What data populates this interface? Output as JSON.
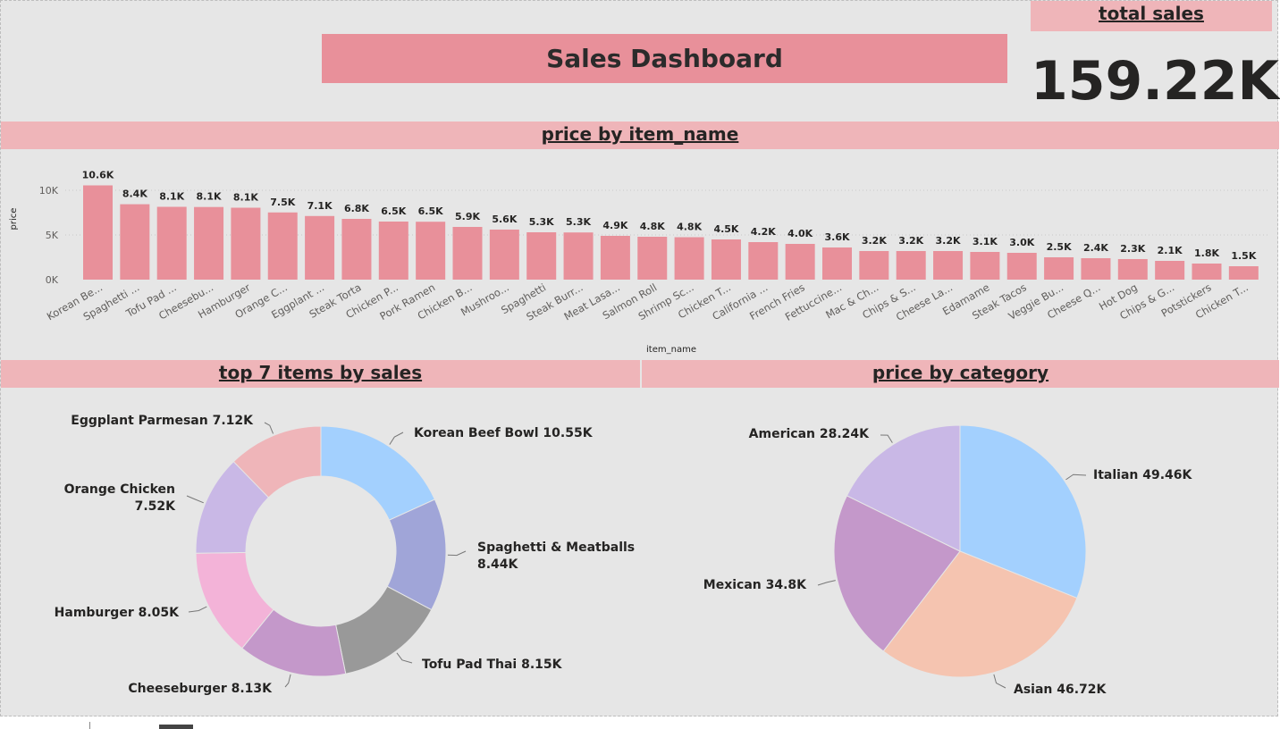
{
  "dashboard": {
    "title": "Sales Dashboard",
    "total_label": "total sales",
    "total_value": "159.22K"
  },
  "charts_titles": {
    "bar": "price by item_name",
    "donut": "top 7 items by sales",
    "pie": "price by category"
  },
  "colors": {
    "bar": "#e8909a",
    "header": "#efb5b9",
    "title_bg": "#e8909a",
    "background": "#e6e6e6"
  },
  "chart_data": [
    {
      "type": "bar",
      "title": "price by item_name",
      "xlabel": "item_name",
      "ylabel": "price",
      "ylim": [
        0,
        11000
      ],
      "yticks": [
        {
          "v": 0,
          "label": "0K"
        },
        {
          "v": 5000,
          "label": "5K"
        },
        {
          "v": 10000,
          "label": "10K"
        }
      ],
      "grid": true,
      "categories": [
        "Korean Be...",
        "Spaghetti ...",
        "Tofu Pad ...",
        "Cheesebu...",
        "Hamburger",
        "Orange C...",
        "Eggplant ...",
        "Steak Torta",
        "Chicken P...",
        "Pork Ramen",
        "Chicken B...",
        "Mushroo...",
        "Spaghetti",
        "Steak Burr...",
        "Meat Lasa...",
        "Salmon Roll",
        "Shrimp Sc...",
        "Chicken T...",
        "California ...",
        "French Fries",
        "Fettuccine...",
        "Mac & Ch...",
        "Chips & S...",
        "Cheese La...",
        "Edamame",
        "Steak Tacos",
        "Veggie Bu...",
        "Cheese Q...",
        "Hot Dog",
        "Chips & G...",
        "Potstickers",
        "Chicken T..."
      ],
      "values": [
        10550,
        8440,
        8150,
        8130,
        8050,
        7520,
        7120,
        6800,
        6500,
        6480,
        5900,
        5600,
        5300,
        5280,
        4900,
        4800,
        4750,
        4500,
        4200,
        4000,
        3600,
        3200,
        3200,
        3200,
        3100,
        3000,
        2500,
        2400,
        2300,
        2100,
        1800,
        1500
      ],
      "data_labels": [
        "10.6K",
        "8.4K",
        "8.1K",
        "8.1K",
        "8.1K",
        "7.5K",
        "7.1K",
        "6.8K",
        "6.5K",
        "6.5K",
        "5.9K",
        "5.6K",
        "5.3K",
        "5.3K",
        "4.9K",
        "4.8K",
        "4.8K",
        "4.5K",
        "4.2K",
        "4.0K",
        "3.6K",
        "3.2K",
        "3.2K",
        "3.2K",
        "3.1K",
        "3.0K",
        "2.5K",
        "2.4K",
        "2.3K",
        "2.1K",
        "1.8K",
        "1.5K"
      ]
    },
    {
      "type": "pie",
      "subtype": "donut",
      "title": "top 7 items by sales",
      "slices": [
        {
          "label": "Korean Beef Bowl 10.55K",
          "value": 10.55,
          "color": "#a3d0fe"
        },
        {
          "label": "Spaghetti & Meatballs 8.44K",
          "value": 8.44,
          "color": "#a0a5d8"
        },
        {
          "label": "Tofu Pad Thai 8.15K",
          "value": 8.15,
          "color": "#999999"
        },
        {
          "label": "Cheeseburger 8.13K",
          "value": 8.13,
          "color": "#c498ca"
        },
        {
          "label": "Hamburger 8.05K",
          "value": 8.05,
          "color": "#f3b3d8"
        },
        {
          "label": "Orange Chicken 7.52K",
          "value": 7.52,
          "color": "#c9b8e6"
        },
        {
          "label": "Eggplant Parmesan 7.12K",
          "value": 7.12,
          "color": "#efb5b9"
        }
      ]
    },
    {
      "type": "pie",
      "title": "price by category",
      "slices": [
        {
          "label": "Italian 49.46K",
          "value": 49.46,
          "color": "#a3d0fe"
        },
        {
          "label": "Asian 46.72K",
          "value": 46.72,
          "color": "#f5c4b0"
        },
        {
          "label": "Mexican 34.8K",
          "value": 34.8,
          "color": "#c498ca"
        },
        {
          "label": "American 28.24K",
          "value": 28.24,
          "color": "#c9b8e6"
        }
      ]
    }
  ]
}
